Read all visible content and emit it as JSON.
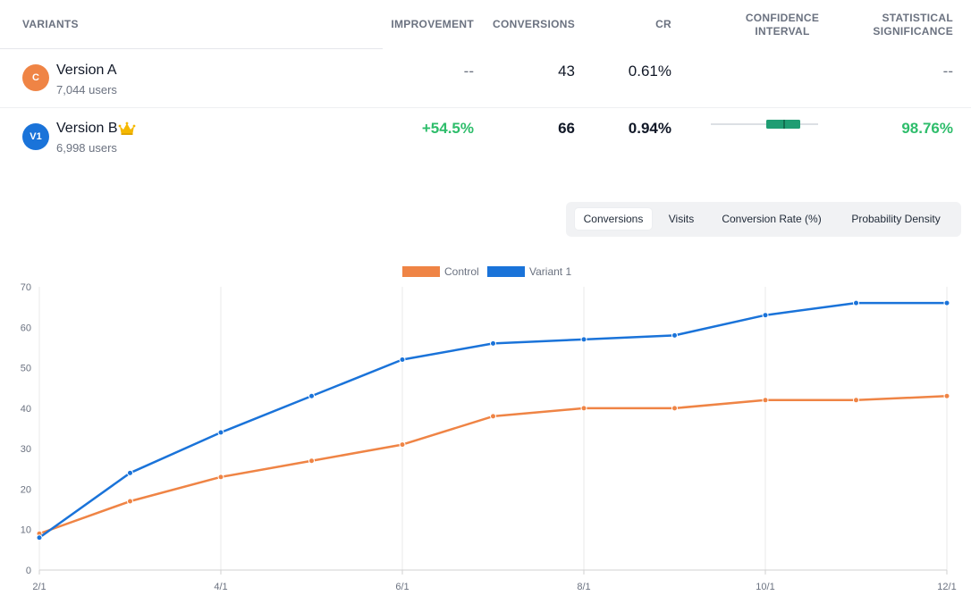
{
  "table": {
    "headers": {
      "variants": "VARIANTS",
      "improvement": "IMPROVEMENT",
      "conversions": "CONVERSIONS",
      "cr": "CR",
      "ci_line1": "CONFIDENCE",
      "ci_line2": "INTERVAL",
      "sig_line1": "STATISTICAL",
      "sig_line2": "SIGNIFICANCE"
    },
    "rows": [
      {
        "avatar": "C",
        "avatar_color": "#ef8445",
        "name": "Version A",
        "users": "7,044 users",
        "improvement": "--",
        "conversions": "43",
        "cr": "0.61%",
        "significance": "--"
      },
      {
        "avatar": "V1",
        "avatar_color": "#1a73d9",
        "name": "Version B",
        "winner_icon": "crown-icon",
        "users": "6,998 users",
        "improvement": "+54.5%",
        "conversions": "66",
        "cr": "0.94%",
        "significance": "98.76%",
        "confidence_color": "#1f9d73"
      }
    ]
  },
  "tabs": [
    {
      "label": "Conversions",
      "active": true
    },
    {
      "label": "Visits",
      "active": false
    },
    {
      "label": "Conversion Rate (%)",
      "active": false
    },
    {
      "label": "Probability Density",
      "active": false
    }
  ],
  "chart_data": {
    "type": "line",
    "x": [
      "2/1",
      "3/1",
      "4/1",
      "5/1",
      "6/1",
      "7/1",
      "8/1",
      "9/1",
      "10/1",
      "11/1",
      "12/1"
    ],
    "x_tick_labels": [
      "2/1",
      "4/1",
      "6/1",
      "8/1",
      "10/1",
      "12/1"
    ],
    "series": [
      {
        "name": "Control",
        "color": "#ef8445",
        "values": [
          9,
          17,
          23,
          27,
          31,
          38,
          40,
          40,
          42,
          42,
          43
        ]
      },
      {
        "name": "Variant 1",
        "color": "#1a73d9",
        "values": [
          8,
          24,
          34,
          43,
          52,
          56,
          57,
          58,
          63,
          66,
          66
        ]
      }
    ],
    "ylim": [
      0,
      70
    ],
    "y_ticks": [
      0,
      10,
      20,
      30,
      40,
      50,
      60,
      70
    ],
    "grid": "vertical",
    "legend": "top-center"
  }
}
